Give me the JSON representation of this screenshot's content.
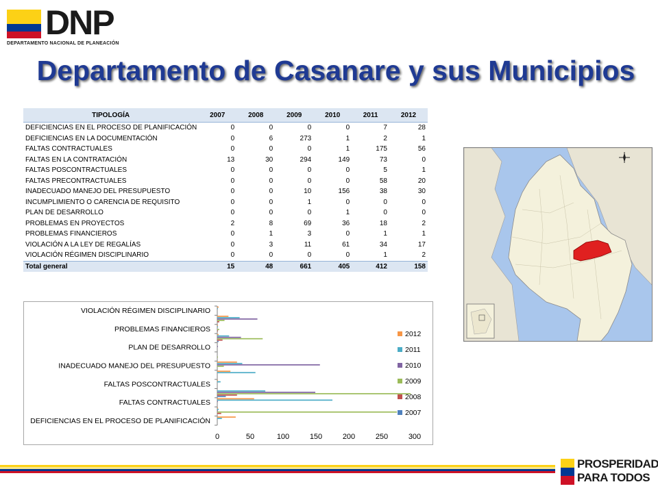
{
  "header": {
    "logo_text": "DNP",
    "logo_subtitle": "DEPARTAMENTO NACIONAL DE PLANEACIÓN",
    "title": "Departamento de Casanare y sus Municipios"
  },
  "table": {
    "headers": [
      "TIPOLOGÍA",
      "2007",
      "2008",
      "2009",
      "2010",
      "2011",
      "2012"
    ],
    "rows": [
      {
        "label": "DEFICIENCIAS  EN EL PROCESO DE PLANIFICACIÓN",
        "values": [
          "0",
          "0",
          "0",
          "0",
          "7",
          "28"
        ]
      },
      {
        "label": "DEFICIENCIAS  EN LA DOCUMENTACIÓN",
        "values": [
          "0",
          "6",
          "273",
          "1",
          "2",
          "1"
        ]
      },
      {
        "label": "FALTAS CONTRACTUALES",
        "values": [
          "0",
          "0",
          "0",
          "1",
          "175",
          "56"
        ]
      },
      {
        "label": "FALTAS EN LA CONTRATACIÓN",
        "values": [
          "13",
          "30",
          "294",
          "149",
          "73",
          "0"
        ]
      },
      {
        "label": "FALTAS POSCONTRACTUALES",
        "values": [
          "0",
          "0",
          "0",
          "0",
          "5",
          "1"
        ]
      },
      {
        "label": "FALTAS PRECONTRACTUALES",
        "values": [
          "0",
          "0",
          "0",
          "0",
          "58",
          "20"
        ]
      },
      {
        "label": "INADECUADO  MANEJO DEL PRESUPUESTO",
        "values": [
          "0",
          "0",
          "10",
          "156",
          "38",
          "30"
        ]
      },
      {
        "label": "INCUMPLIMIENTO  O CARENCIA DE REQUISITO",
        "values": [
          "0",
          "0",
          "1",
          "0",
          "0",
          "0"
        ]
      },
      {
        "label": "PLAN DE DESARROLLO",
        "values": [
          "0",
          "0",
          "0",
          "1",
          "0",
          "0"
        ]
      },
      {
        "label": "PROBLEMAS EN  PROYECTOS",
        "values": [
          "2",
          "8",
          "69",
          "36",
          "18",
          "2"
        ]
      },
      {
        "label": "PROBLEMAS FINANCIEROS",
        "values": [
          "0",
          "1",
          "3",
          "0",
          "1",
          "1"
        ]
      },
      {
        "label": "VIOLACIÓN A LA LEY DE REGALÍAS",
        "values": [
          "0",
          "3",
          "11",
          "61",
          "34",
          "17"
        ]
      },
      {
        "label": "VIOLACIÓN RÉGIMEN DISCIPLINARIO",
        "values": [
          "0",
          "0",
          "0",
          "0",
          "1",
          "2"
        ]
      }
    ],
    "total": {
      "label": "Total general",
      "values": [
        "15",
        "48",
        "661",
        "405",
        "412",
        "158"
      ]
    }
  },
  "chart_data": {
    "type": "bar",
    "orientation": "horizontal",
    "categories": [
      "DEFICIENCIAS  EN EL PROCESO DE PLANIFICACIÓN",
      "DEFICIENCIAS  EN LA DOCUMENTACIÓN",
      "FALTAS CONTRACTUALES",
      "FALTAS EN LA CONTRATACIÓN",
      "FALTAS POSCONTRACTUALES",
      "FALTAS PRECONTRACTUALES",
      "INADECUADO  MANEJO DEL PRESUPUESTO",
      "INCUMPLIMIENTO  O CARENCIA DE REQUISITO",
      "PLAN DE DESARROLLO",
      "PROBLEMAS EN  PROYECTOS",
      "PROBLEMAS FINANCIEROS",
      "VIOLACIÓN A LA LEY DE REGALÍAS",
      "VIOLACIÓN RÉGIMEN DISCIPLINARIO"
    ],
    "tick_labels": [
      "DEFICIENCIAS EN EL PROCESO DE PLANIFICACIÓN",
      "",
      "FALTAS CONTRACTUALES",
      "",
      "FALTAS POSCONTRACTUALES",
      "",
      "INADECUADO MANEJO DEL PRESUPUESTO",
      "",
      "PLAN DE DESARROLLO",
      "",
      "PROBLEMAS FINANCIEROS",
      "",
      "VIOLACIÓN RÉGIMEN DISCIPLINARIO"
    ],
    "series": [
      {
        "name": "2007",
        "color": "#4f81bd",
        "values": [
          0,
          0,
          0,
          13,
          0,
          0,
          0,
          0,
          0,
          2,
          0,
          0,
          0
        ]
      },
      {
        "name": "2008",
        "color": "#c0504d",
        "values": [
          0,
          6,
          0,
          30,
          0,
          0,
          0,
          0,
          0,
          8,
          1,
          3,
          0
        ]
      },
      {
        "name": "2009",
        "color": "#9bbb59",
        "values": [
          0,
          273,
          0,
          294,
          0,
          0,
          10,
          1,
          0,
          69,
          3,
          11,
          0
        ]
      },
      {
        "name": "2010",
        "color": "#8064a2",
        "values": [
          0,
          1,
          1,
          149,
          0,
          0,
          156,
          0,
          1,
          36,
          0,
          61,
          0
        ]
      },
      {
        "name": "2011",
        "color": "#4bacc6",
        "values": [
          7,
          2,
          175,
          73,
          5,
          58,
          38,
          0,
          0,
          18,
          1,
          34,
          1
        ]
      },
      {
        "name": "2012",
        "color": "#f79646",
        "values": [
          28,
          1,
          56,
          0,
          1,
          20,
          30,
          0,
          0,
          2,
          1,
          17,
          2
        ]
      }
    ],
    "xlim": [
      0,
      300
    ],
    "xticks": [
      0,
      50,
      100,
      150,
      200,
      250,
      300
    ],
    "legend_order": [
      "2012",
      "2011",
      "2010",
      "2009",
      "2008",
      "2007"
    ],
    "legend_position": "right",
    "grid": false
  },
  "colors": {
    "title": "#1f3a93",
    "map_highlight": "#e02020",
    "flag": [
      "#fcd116",
      "#003893",
      "#ce1126"
    ]
  },
  "footer": {
    "brand_line1": "PROSPERIDAD",
    "brand_line2": "PARA TODOS"
  }
}
